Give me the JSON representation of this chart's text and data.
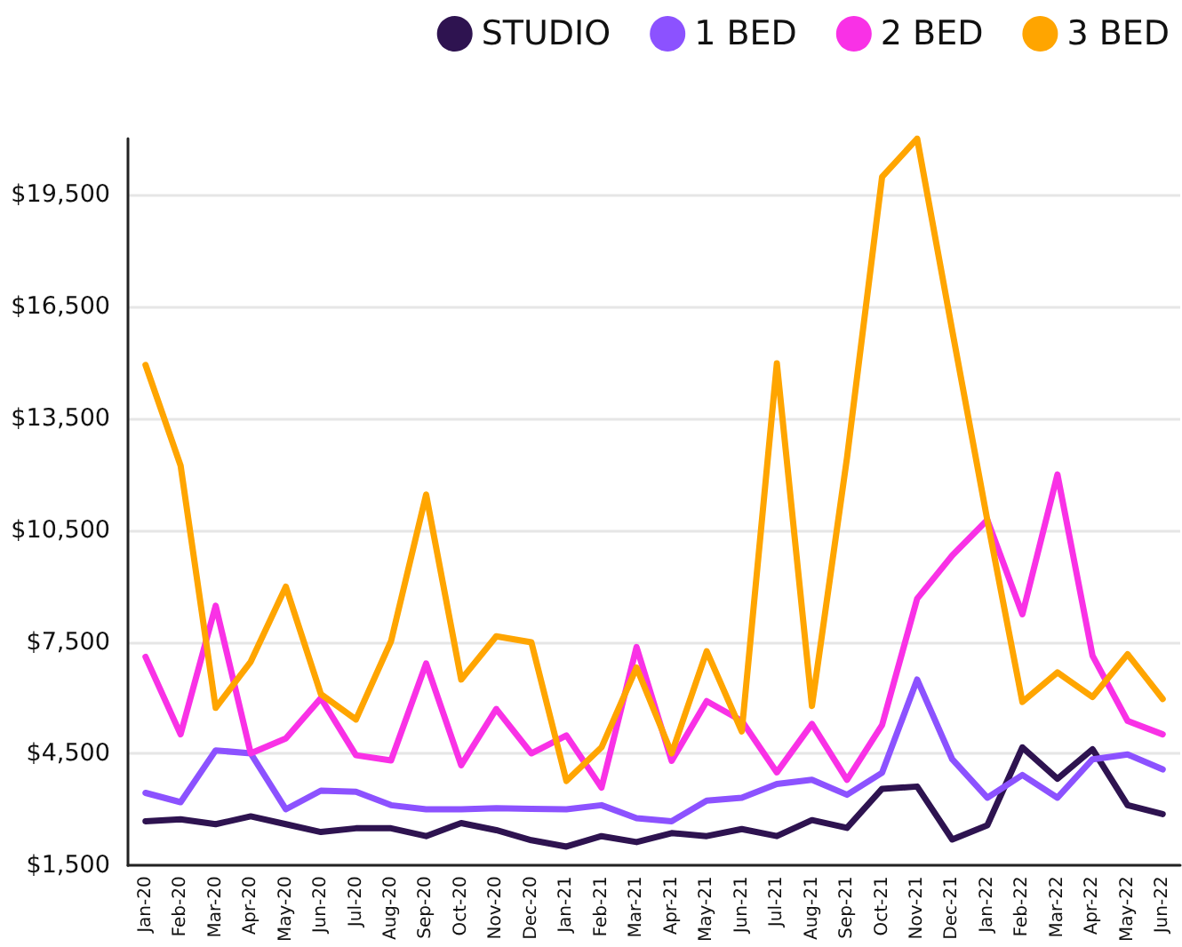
{
  "chart_data": {
    "type": "line",
    "categories": [
      "Jan-20",
      "Feb-20",
      "Mar-20",
      "Apr-20",
      "May-20",
      "Jun-20",
      "Jul-20",
      "Aug-20",
      "Sep-20",
      "Oct-20",
      "Nov-20",
      "Dec-20",
      "Jan-21",
      "Feb-21",
      "Mar-21",
      "Apr-21",
      "May-21",
      "Jun-21",
      "Jul-21",
      "Aug-21",
      "Sep-21",
      "Oct-21",
      "Nov-21",
      "Dec-21",
      "Jan-22",
      "Feb-22",
      "Mar-22",
      "Apr-22",
      "May-22",
      "Jun-22"
    ],
    "series": [
      {
        "name": "STUDIO",
        "color": "#2e1350",
        "values": [
          2690,
          2740,
          2610,
          2820,
          2610,
          2400,
          2500,
          2500,
          2290,
          2640,
          2450,
          2180,
          2010,
          2290,
          2130,
          2370,
          2290,
          2480,
          2290,
          2720,
          2510,
          3560,
          3620,
          2200,
          2580,
          4670,
          3830,
          4620,
          3120,
          2880
        ]
      },
      {
        "name": "1 BED",
        "color": "#8c52ff",
        "values": [
          3450,
          3200,
          4590,
          4510,
          3010,
          3510,
          3480,
          3120,
          3010,
          3010,
          3040,
          3020,
          3010,
          3120,
          2770,
          2690,
          3240,
          3320,
          3690,
          3800,
          3400,
          3990,
          6490,
          4350,
          3320,
          3930,
          3320,
          4350,
          4480,
          4080
        ]
      },
      {
        "name": "2 BED",
        "color": "#f931e6",
        "values": [
          7100,
          5020,
          8470,
          4510,
          4910,
          5990,
          4460,
          4320,
          6920,
          4190,
          5700,
          4510,
          4990,
          3590,
          7360,
          4310,
          5910,
          5380,
          4000,
          5300,
          3800,
          5270,
          8660,
          9820,
          10770,
          8240,
          11990,
          7130,
          5380,
          5020
        ]
      },
      {
        "name": "3 BED",
        "color": "#ffa500",
        "values": [
          14930,
          12230,
          5730,
          6970,
          8980,
          6100,
          5420,
          7520,
          11450,
          6490,
          7650,
          7490,
          3770,
          4670,
          6810,
          4510,
          7250,
          5100,
          14970,
          5780,
          12440,
          19970,
          21000,
          15850,
          10770,
          5890,
          6680,
          6020,
          7170,
          5970
        ]
      }
    ],
    "ylim": [
      1500,
      21000
    ],
    "yticks": [
      {
        "value": 1500,
        "label": "$1,500"
      },
      {
        "value": 4500,
        "label": "$4,500"
      },
      {
        "value": 7500,
        "label": "$7,500"
      },
      {
        "value": 10500,
        "label": "$10,500"
      },
      {
        "value": 13500,
        "label": "$13,500"
      },
      {
        "value": 16500,
        "label": "$16,500"
      },
      {
        "value": 19500,
        "label": "$19,500"
      }
    ],
    "grid": "y",
    "legend": "top right",
    "marker": "none",
    "line_style": "solid"
  }
}
